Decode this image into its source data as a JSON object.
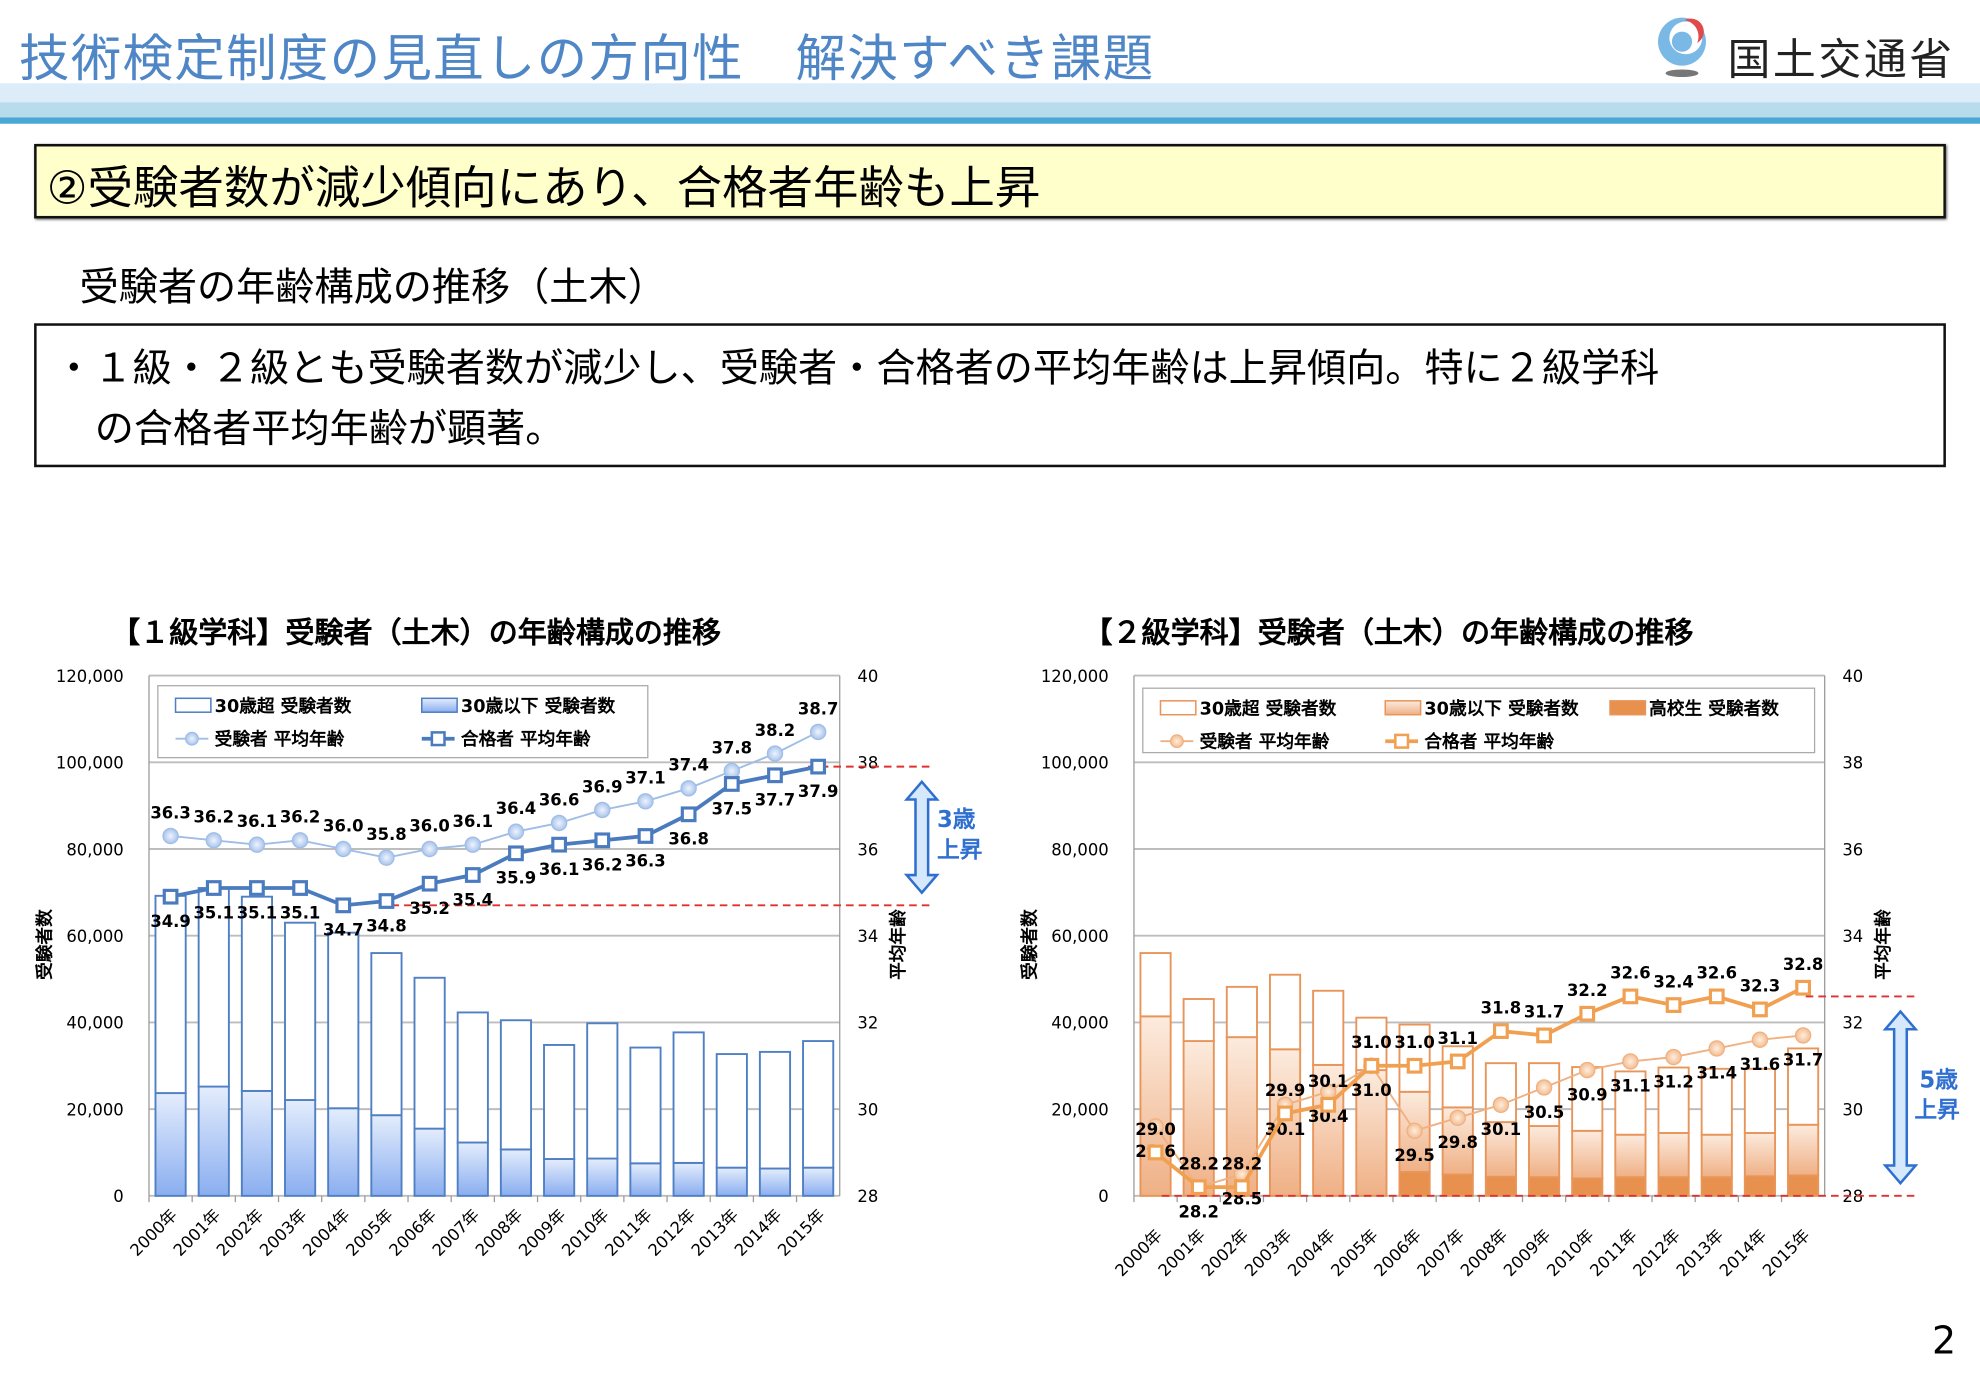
{
  "header": {
    "title": "技術検定制度の見直しの方向性　解決すべき課題",
    "logo_text": "国土交通省",
    "title_color": "#4f86c6"
  },
  "point_box": {
    "text": "②受験者数が減少傾向にあり、合格者年齢も上昇"
  },
  "subheading": "受験者の年齢構成の推移（土木）",
  "summary": {
    "line1": "・１級・２級とも受験者数が減少し、受験者・合格者の平均年齢は上昇傾向。特に２級学科",
    "line2": "の合格者平均年齢が顕著。"
  },
  "page_number": "2",
  "chart_data": [
    {
      "type": "bar+line",
      "title": "【１級学科】受験者（土木）の年齢構成の推移",
      "ylabel": "受験者数",
      "y2label": "平均年齢",
      "ylim": [
        0,
        120000
      ],
      "yticks": [
        "0",
        "20,000",
        "40,000",
        "60,000",
        "80,000",
        "100,000",
        "120,000"
      ],
      "y2lim": [
        28,
        40
      ],
      "y2ticks": [
        "28",
        "30",
        "32",
        "34",
        "36",
        "38",
        "40"
      ],
      "grid": true,
      "legend": "top-left",
      "categories": [
        "2000年",
        "2001年",
        "2002年",
        "2003年",
        "2004年",
        "2005年",
        "2006年",
        "2007年",
        "2008年",
        "2009年",
        "2010年",
        "2011年",
        "2012年",
        "2013年",
        "2014年",
        "2015年"
      ],
      "bar_series": [
        {
          "name": "30歳以下 受験者数",
          "values": [
            23700,
            25200,
            24200,
            22100,
            20200,
            18600,
            15500,
            12300,
            10700,
            8500,
            8600,
            7500,
            7600,
            6500,
            6300,
            6500
          ],
          "color": "#8fb0ef"
        },
        {
          "name": "30歳超 受験者数",
          "values": [
            45500,
            45800,
            44800,
            40900,
            40500,
            37400,
            34800,
            30000,
            29800,
            26300,
            31200,
            26700,
            30100,
            26200,
            26900,
            29200
          ],
          "color": "#ffffff"
        }
      ],
      "legend_order": [
        "30歳超 受験者数",
        "30歳以下 受験者数",
        "受験者 平均年齢",
        "合格者 平均年齢"
      ],
      "line_series": [
        {
          "name": "受験者 平均年齢",
          "marker": "circle",
          "values": [
            36.3,
            36.2,
            36.1,
            36.2,
            36.0,
            35.8,
            36.0,
            36.1,
            36.4,
            36.6,
            36.9,
            37.1,
            37.4,
            37.8,
            38.2,
            38.7
          ],
          "color": "#9fbde6"
        },
        {
          "name": "合格者 平均年齢",
          "marker": "square",
          "values": [
            34.9,
            35.1,
            35.1,
            35.1,
            34.7,
            34.8,
            35.2,
            35.4,
            35.9,
            36.1,
            36.2,
            36.3,
            36.8,
            37.5,
            37.7,
            37.9
          ],
          "color": "#4a7bbf"
        }
      ],
      "annotation": {
        "text_line1": "3歳",
        "text_line2": "上昇",
        "from": 34.7,
        "to": 37.9,
        "color": "#2f6fd0",
        "reference_line_color": "#e03030"
      }
    },
    {
      "type": "bar+line",
      "title": "【２級学科】受験者（土木）の年齢構成の推移",
      "ylabel": "受験者数",
      "y2label": "平均年齢",
      "ylim": [
        0,
        120000
      ],
      "yticks": [
        "0",
        "20,000",
        "40,000",
        "60,000",
        "80,000",
        "100,000",
        "120,000"
      ],
      "y2lim": [
        28,
        40
      ],
      "y2ticks": [
        "28",
        "30",
        "32",
        "34",
        "36",
        "38",
        "40"
      ],
      "grid": true,
      "legend": "top-left",
      "categories": [
        "2000年",
        "2001年",
        "2002年",
        "2003年",
        "2004年",
        "2005年",
        "2006年",
        "2007年",
        "2008年",
        "2009年",
        "2010年",
        "2011年",
        "2012年",
        "2013年",
        "2014年",
        "2015年"
      ],
      "bar_series": [
        {
          "name": "高校生 受験者数",
          "values": [
            0,
            0,
            0,
            0,
            0,
            0,
            5500,
            4900,
            4400,
            4300,
            4000,
            4300,
            4300,
            4300,
            4500,
            4700
          ],
          "color": "#e8914e"
        },
        {
          "name": "30歳以下 受験者数",
          "values": [
            41400,
            35700,
            36600,
            33800,
            30200,
            29000,
            18500,
            15500,
            12600,
            11800,
            11000,
            9800,
            10200,
            9800,
            10000,
            11700
          ],
          "color": "#f0b587"
        },
        {
          "name": "30歳超 受験者数",
          "values": [
            14600,
            9700,
            11600,
            17200,
            17100,
            12100,
            15500,
            14100,
            13600,
            14500,
            14700,
            14600,
            15100,
            15200,
            14800,
            17600
          ],
          "color": "#ffffff"
        }
      ],
      "legend_order": [
        "30歳超 受験者数",
        "30歳以下 受験者数",
        "高校生 受験者数",
        "受験者 平均年齢",
        "合格者 平均年齢"
      ],
      "line_series": [
        {
          "name": "受験者 平均年齢",
          "marker": "circle",
          "values": [
            29.6,
            28.2,
            28.5,
            30.1,
            30.4,
            31.0,
            29.5,
            29.8,
            30.1,
            30.5,
            30.9,
            31.1,
            31.2,
            31.4,
            31.6,
            31.7
          ],
          "color": "#f0b080"
        },
        {
          "name": "合格者 平均年齢",
          "marker": "square",
          "values": [
            29.0,
            28.2,
            28.2,
            29.9,
            30.1,
            31.0,
            31.0,
            31.1,
            31.8,
            31.7,
            32.2,
            32.6,
            32.4,
            32.6,
            32.3,
            32.8
          ],
          "color": "#f0a050"
        }
      ],
      "annotation": {
        "text_line1": "5歳",
        "text_line2": "上昇",
        "from": 28.0,
        "to": 32.6,
        "color": "#2f6fd0",
        "reference_line_color": "#e03030"
      }
    }
  ]
}
